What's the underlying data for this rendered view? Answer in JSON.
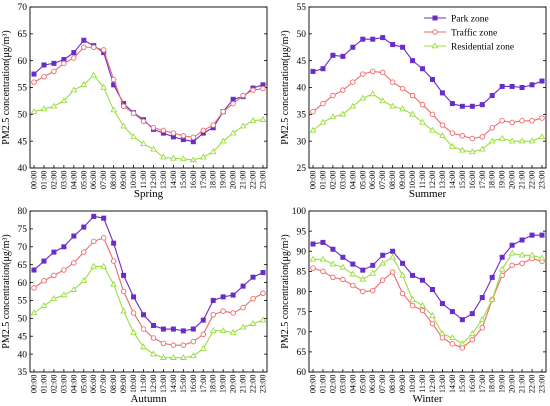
{
  "chart_data": [
    {
      "type": "line",
      "title": "Spring",
      "ylabel": "PM2.5 concentration(μg/m³)",
      "ylim": [
        40,
        70
      ],
      "yticks": [
        40,
        45,
        50,
        55,
        60,
        65,
        70
      ],
      "x": [
        "00:00",
        "01:00",
        "02:00",
        "03:00",
        "04:00",
        "05:00",
        "06:00",
        "07:00",
        "08:00",
        "09:00",
        "10:00",
        "11:00",
        "12:00",
        "13:00",
        "14:00",
        "15:00",
        "16:00",
        "17:00",
        "18:00",
        "19:00",
        "20:00",
        "21:00",
        "22:00",
        "23:00"
      ],
      "series": [
        {
          "name": "Park zone",
          "color": "#6a2cc8",
          "marker": "square",
          "values": [
            57.5,
            59.2,
            59.5,
            60.2,
            61.5,
            63.8,
            62.8,
            61.5,
            55.5,
            52.0,
            50.3,
            49.0,
            47.2,
            46.5,
            45.8,
            45.3,
            44.9,
            46.5,
            47.5,
            50.5,
            52.8,
            53.3,
            54.9,
            55.5
          ]
        },
        {
          "name": "Traffic zone",
          "color": "#ee6b6b",
          "marker": "circle",
          "values": [
            56.0,
            57.0,
            58.0,
            59.5,
            60.5,
            62.5,
            62.5,
            62.0,
            56.5,
            51.5,
            50.2,
            48.7,
            47.5,
            47.0,
            46.5,
            46.0,
            45.7,
            47.0,
            48.0,
            50.5,
            52.0,
            53.5,
            54.5,
            54.8
          ]
        },
        {
          "name": "Residential zone",
          "color": "#9ade3e",
          "marker": "triangle",
          "values": [
            50.5,
            51.0,
            51.5,
            52.5,
            54.5,
            55.5,
            57.3,
            55.0,
            50.8,
            47.8,
            45.8,
            44.5,
            43.5,
            42.0,
            41.8,
            41.7,
            41.5,
            42.0,
            43.0,
            45.0,
            46.5,
            47.8,
            48.8,
            49.0
          ]
        }
      ]
    },
    {
      "type": "line",
      "title": "Summer",
      "ylabel": "PM2.5 concentration(μg/m³)",
      "ylim": [
        25,
        55
      ],
      "yticks": [
        25,
        30,
        35,
        40,
        45,
        50,
        55
      ],
      "legend": "top-right",
      "x": [
        "00:00",
        "01:00",
        "02:00",
        "03:00",
        "04:00",
        "05:00",
        "06:00",
        "07:00",
        "08:00",
        "09:00",
        "10:00",
        "11:00",
        "12:00",
        "13:00",
        "14:00",
        "15:00",
        "16:00",
        "17:00",
        "18:00",
        "19:00",
        "20:00",
        "21:00",
        "22:00",
        "23:00"
      ],
      "series": [
        {
          "name": "Park zone",
          "color": "#6a2cc8",
          "marker": "square",
          "values": [
            43.0,
            43.5,
            46.0,
            45.8,
            47.5,
            49.0,
            49.0,
            49.3,
            48.0,
            47.5,
            45.0,
            43.5,
            41.5,
            39.0,
            37.0,
            36.5,
            36.5,
            36.8,
            38.5,
            40.2,
            40.2,
            40.0,
            40.5,
            41.2
          ]
        },
        {
          "name": "Traffic zone",
          "color": "#ee6b6b",
          "marker": "circle",
          "values": [
            35.5,
            37.0,
            38.5,
            39.5,
            41.0,
            42.5,
            43.0,
            42.8,
            41.0,
            39.8,
            38.5,
            36.8,
            35.0,
            33.0,
            31.5,
            31.0,
            30.5,
            30.8,
            32.5,
            33.8,
            33.5,
            33.8,
            33.8,
            34.3
          ]
        },
        {
          "name": "Residential zone",
          "color": "#9ade3e",
          "marker": "triangle",
          "values": [
            32.0,
            33.5,
            34.5,
            35.0,
            36.5,
            38.0,
            38.8,
            37.5,
            36.5,
            36.0,
            35.0,
            33.5,
            32.0,
            31.0,
            29.0,
            28.3,
            28.0,
            28.5,
            30.0,
            30.5,
            30.0,
            30.0,
            30.0,
            30.8
          ]
        }
      ]
    },
    {
      "type": "line",
      "title": "Autumn",
      "ylabel": "PM2.5 concentration(μg/m³)",
      "ylim": [
        35,
        80
      ],
      "yticks": [
        35,
        40,
        45,
        50,
        55,
        60,
        65,
        70,
        75,
        80
      ],
      "x": [
        "00:00",
        "01:00",
        "02:00",
        "03:00",
        "04:00",
        "05:00",
        "06:00",
        "07:00",
        "08:00",
        "09:00",
        "10:00",
        "11:00",
        "12:00",
        "13:00",
        "14:00",
        "15:00",
        "16:00",
        "17:00",
        "18:00",
        "19:00",
        "20:00",
        "21:00",
        "22:00",
        "23:00"
      ],
      "series": [
        {
          "name": "Park zone",
          "color": "#6a2cc8",
          "marker": "square",
          "values": [
            63.5,
            66.0,
            68.5,
            70.0,
            73.0,
            75.5,
            78.5,
            78.0,
            71.0,
            62.0,
            56.0,
            51.0,
            48.0,
            47.0,
            47.0,
            46.5,
            47.0,
            49.5,
            55.0,
            56.0,
            56.5,
            59.0,
            61.5,
            62.8
          ]
        },
        {
          "name": "Traffic zone",
          "color": "#ee6b6b",
          "marker": "circle",
          "values": [
            58.5,
            60.5,
            62.0,
            63.5,
            65.5,
            68.5,
            71.5,
            72.5,
            66.0,
            57.5,
            51.5,
            47.0,
            44.5,
            43.0,
            42.5,
            42.5,
            43.5,
            45.5,
            51.0,
            52.0,
            51.5,
            53.0,
            55.5,
            57.0
          ]
        },
        {
          "name": "Residential zone",
          "color": "#9ade3e",
          "marker": "triangle",
          "values": [
            51.5,
            53.5,
            55.5,
            56.5,
            58.0,
            60.5,
            64.5,
            64.5,
            59.5,
            52.0,
            46.0,
            42.0,
            40.0,
            39.0,
            39.0,
            39.0,
            39.5,
            41.5,
            46.5,
            46.5,
            46.0,
            47.5,
            48.5,
            49.5
          ]
        }
      ]
    },
    {
      "type": "line",
      "title": "Winter",
      "ylabel": "PM2.5 concentration(μg/m³)",
      "ylim": [
        60,
        100
      ],
      "yticks": [
        60,
        65,
        70,
        75,
        80,
        85,
        90,
        95,
        100
      ],
      "x": [
        "00:00",
        "01:00",
        "02:00",
        "03:00",
        "04:00",
        "05:00",
        "06:00",
        "07:00",
        "08:00",
        "09:00",
        "10:00",
        "11:00",
        "12:00",
        "13:00",
        "14:00",
        "15:00",
        "16:00",
        "17:00",
        "18:00",
        "19:00",
        "20:00",
        "21:00",
        "22:00",
        "23:00"
      ],
      "series": [
        {
          "name": "Park zone",
          "color": "#6a2cc8",
          "marker": "square",
          "values": [
            91.8,
            92.2,
            90.5,
            88.5,
            86.8,
            85.3,
            86.5,
            89.0,
            90.0,
            87.0,
            84.0,
            82.8,
            80.5,
            77.0,
            75.0,
            73.0,
            74.5,
            78.5,
            83.5,
            88.5,
            91.5,
            92.8,
            94.0,
            94.0
          ]
        },
        {
          "name": "Traffic zone",
          "color": "#ee6b6b",
          "marker": "circle",
          "values": [
            85.8,
            85.0,
            83.5,
            83.0,
            81.5,
            80.0,
            80.2,
            82.8,
            84.8,
            79.5,
            76.5,
            75.3,
            72.0,
            68.5,
            67.0,
            66.0,
            68.0,
            71.0,
            78.0,
            84.0,
            86.5,
            87.0,
            88.2,
            87.5
          ]
        },
        {
          "name": "Residential zone",
          "color": "#9ade3e",
          "marker": "triangle",
          "values": [
            88.0,
            88.0,
            86.8,
            86.0,
            84.3,
            83.0,
            84.5,
            87.0,
            88.5,
            84.0,
            78.0,
            76.5,
            74.0,
            69.5,
            68.5,
            67.0,
            69.5,
            73.0,
            78.0,
            85.5,
            89.5,
            89.0,
            89.0,
            88.3
          ]
        }
      ]
    }
  ]
}
